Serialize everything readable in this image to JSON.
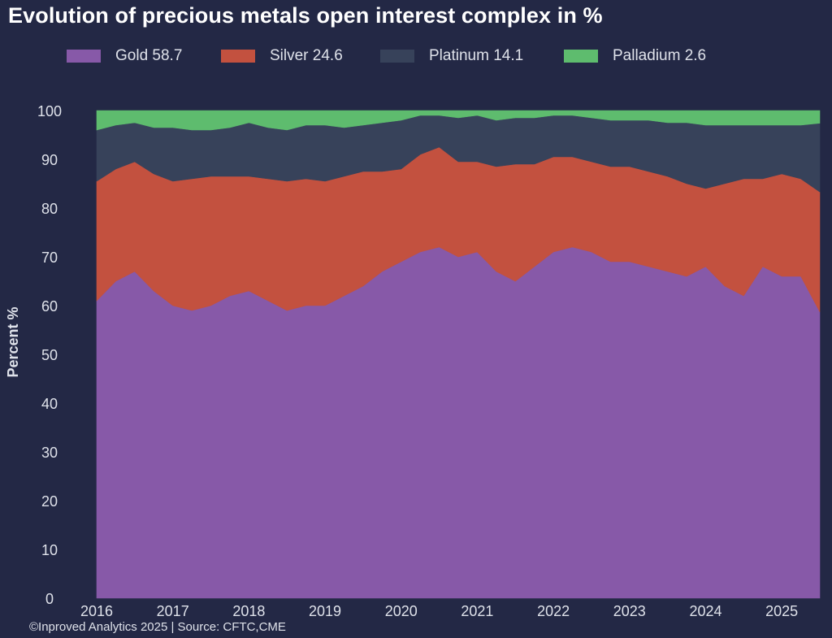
{
  "chart_data": {
    "type": "area",
    "stacked": true,
    "title": "Evolution of precious metals open interest complex in %",
    "ylabel": "Percent %",
    "xlabel": "",
    "ylim": [
      0,
      100
    ],
    "xlim": [
      2016.0,
      2025.5
    ],
    "yticks": [
      0,
      10,
      20,
      30,
      40,
      50,
      60,
      70,
      80,
      90,
      100
    ],
    "xticks": [
      "2016",
      "2017",
      "2018",
      "2019",
      "2020",
      "2021",
      "2022",
      "2023",
      "2024",
      "2025"
    ],
    "legend_position": "top",
    "grid": false,
    "x": [
      2016.0,
      2016.25,
      2016.5,
      2016.75,
      2017.0,
      2017.25,
      2017.5,
      2017.75,
      2018.0,
      2018.25,
      2018.5,
      2018.75,
      2019.0,
      2019.25,
      2019.5,
      2019.75,
      2020.0,
      2020.25,
      2020.5,
      2020.75,
      2021.0,
      2021.25,
      2021.5,
      2021.75,
      2022.0,
      2022.25,
      2022.5,
      2022.75,
      2023.0,
      2023.25,
      2023.5,
      2023.75,
      2024.0,
      2024.25,
      2024.5,
      2024.75,
      2025.0,
      2025.25,
      2025.5
    ],
    "series": [
      {
        "name": "Gold 58.7",
        "color": "#8759a8",
        "values": [
          61,
          65,
          67,
          63,
          60,
          59,
          60,
          62,
          63,
          61,
          59,
          60,
          60,
          62,
          64,
          67,
          69,
          71,
          72,
          70,
          71,
          67,
          65,
          68,
          71,
          72,
          71,
          69,
          69,
          68,
          67,
          66,
          68,
          64,
          62,
          68,
          66,
          66,
          58.7
        ]
      },
      {
        "name": "Silver 24.6",
        "color": "#c3513f",
        "values": [
          24.5,
          23,
          22.5,
          24,
          25.5,
          27,
          26.5,
          24.5,
          23.5,
          25,
          26.5,
          26,
          25.5,
          24.5,
          23.5,
          20.5,
          19,
          20,
          20.5,
          19.5,
          18.5,
          21.5,
          24,
          21,
          19.5,
          18.5,
          18.5,
          19.5,
          19.5,
          19.5,
          19.5,
          19,
          16,
          21,
          24,
          18,
          21,
          20,
          24.6
        ]
      },
      {
        "name": "Platinum 14.1",
        "color": "#37425a",
        "values": [
          10.5,
          9,
          8,
          9.5,
          11,
          10,
          9.5,
          10,
          11,
          10.5,
          10.5,
          11,
          11.5,
          10,
          9.5,
          10,
          10,
          8,
          6.5,
          9,
          9.5,
          9.5,
          9.5,
          9.5,
          8.5,
          8.5,
          9,
          9.5,
          9.5,
          10.5,
          11,
          12.5,
          13,
          12,
          11,
          11,
          10,
          11,
          14.1
        ]
      },
      {
        "name": "Palladium 2.6",
        "color": "#5ebc6e",
        "values": [
          4,
          3,
          2.5,
          3.5,
          3.5,
          4,
          4,
          3.5,
          2.5,
          3.5,
          4,
          3,
          3,
          3.5,
          3,
          2.5,
          2,
          1,
          1,
          1.5,
          1,
          2,
          1.5,
          1.5,
          1,
          1,
          1.5,
          2,
          2,
          2,
          2.5,
          2.5,
          3,
          3,
          3,
          3,
          3,
          3,
          2.6
        ]
      }
    ]
  },
  "footer": {
    "credit": "©Inproved Analytics 2025 | Source: CFTC,CME"
  }
}
